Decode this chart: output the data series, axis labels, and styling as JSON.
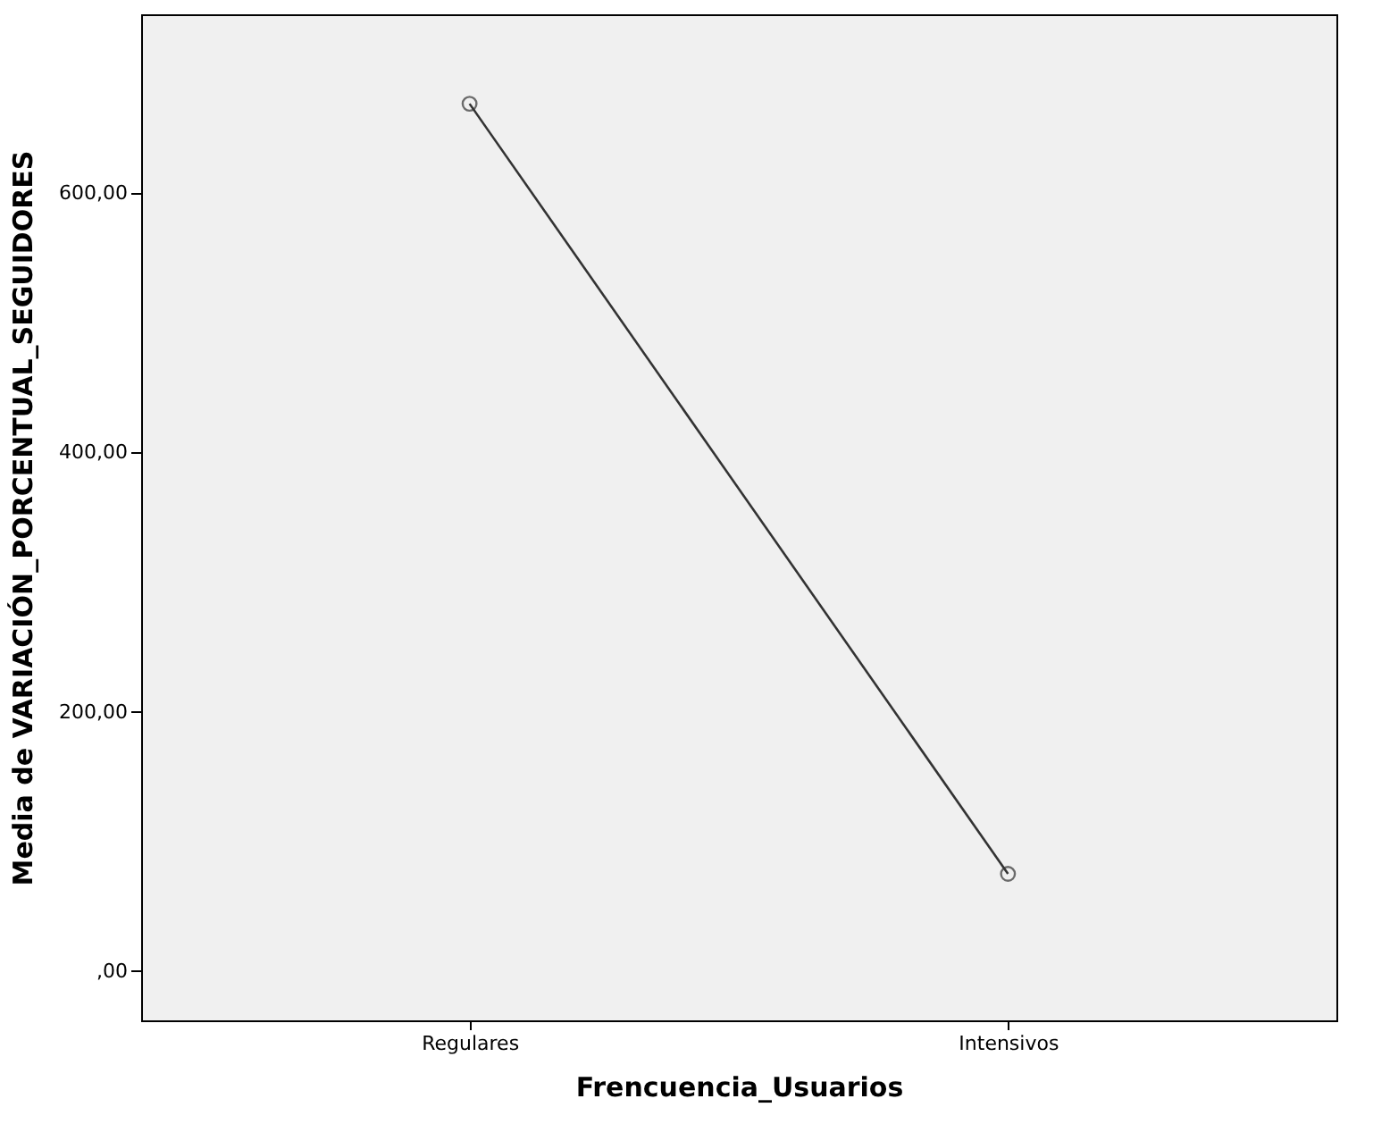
{
  "chart_data": {
    "type": "line",
    "xlabel": "Frencuencia_Usuarios",
    "ylabel": "Media de VARIACIÓN_PORCENTUAL_SEGUIDORES",
    "categories": [
      "Regulares",
      "Intensivos"
    ],
    "series": [
      {
        "color": "#333333",
        "values": [
          669,
          75
        ]
      }
    ],
    "ylim": [
      -38,
      738
    ],
    "yticks": [
      {
        "value": 0,
        "label": ",00"
      },
      {
        "value": 200,
        "label": "200,00"
      },
      {
        "value": 400,
        "label": "400,00"
      },
      {
        "value": 600,
        "label": "600,00"
      }
    ],
    "marker": "circle",
    "line_style": "solid",
    "grid": false,
    "legend": false
  }
}
